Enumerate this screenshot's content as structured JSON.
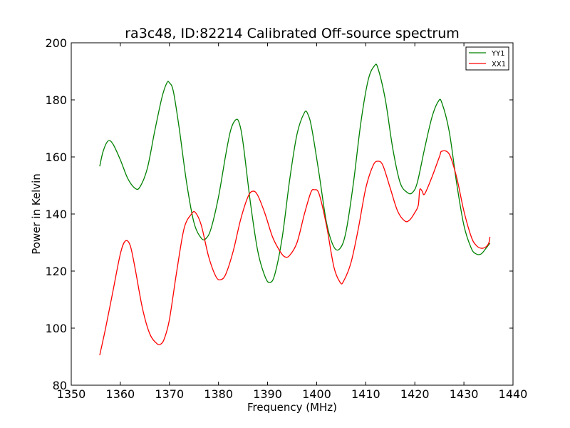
{
  "chart_data": {
    "type": "line",
    "title": "ra3c48, ID:82214 Calibrated Off-source spectrum",
    "xlabel": "Frequency (MHz)",
    "ylabel": "Power in Kelvin",
    "xlim": [
      1350,
      1440
    ],
    "ylim": [
      80,
      200
    ],
    "xticks": [
      1350,
      1360,
      1370,
      1380,
      1390,
      1400,
      1410,
      1420,
      1430,
      1440
    ],
    "yticks": [
      80,
      100,
      120,
      140,
      160,
      180,
      200
    ],
    "grid": false,
    "legend_position": "top-right",
    "series": [
      {
        "name": "YY1",
        "color": "#008000",
        "x": [
          1355.8,
          1356.5,
          1357.5,
          1358.5,
          1360,
          1361.5,
          1363,
          1364,
          1365.5,
          1367,
          1368.5,
          1369.5,
          1370,
          1370.8,
          1372,
          1373.5,
          1375,
          1376.5,
          1377.5,
          1378.5,
          1380,
          1381.5,
          1382.5,
          1383.5,
          1384.2,
          1385,
          1386.5,
          1388,
          1389.5,
          1390.5,
          1391.5,
          1393,
          1394.5,
          1396,
          1397.5,
          1398.2,
          1399,
          1400.5,
          1402,
          1403.5,
          1404.8,
          1406,
          1407.5,
          1409,
          1410.5,
          1411.8,
          1412.5,
          1414,
          1415.5,
          1417,
          1418.5,
          1419.5,
          1420.5,
          1422,
          1423.5,
          1424.8,
          1425.5,
          1427,
          1428.5,
          1430,
          1431.5,
          1432.5,
          1433.5,
          1434.5,
          1435.3
        ],
        "values": [
          156.7,
          162,
          165.6,
          164.5,
          159,
          152.5,
          149,
          149.5,
          156,
          169,
          181,
          186,
          186,
          183,
          170,
          151,
          137,
          131.5,
          131.5,
          135,
          146,
          161,
          169.5,
          173,
          172,
          165,
          144,
          127,
          118,
          116,
          119,
          132,
          152,
          168,
          175.5,
          175,
          170,
          154,
          137,
          128.5,
          128,
          134,
          151,
          172,
          187,
          192,
          191,
          180,
          163,
          151,
          147.5,
          147.5,
          151,
          163,
          174,
          179.5,
          179,
          169,
          151,
          136,
          128,
          126,
          126,
          128,
          129.8
        ]
      },
      {
        "name": "XX1",
        "color": "#ff0000",
        "x": [
          1355.8,
          1357,
          1358.5,
          1360,
          1361,
          1362,
          1363,
          1364.5,
          1366,
          1367.5,
          1368.3,
          1369,
          1370,
          1371.5,
          1373,
          1374.5,
          1375.3,
          1376.5,
          1378,
          1379.5,
          1380.5,
          1381.5,
          1383,
          1384.5,
          1386,
          1387,
          1388,
          1389.5,
          1391,
          1392.5,
          1393.5,
          1394.5,
          1396,
          1397.5,
          1398.8,
          1399.5,
          1400.5,
          1402,
          1403.5,
          1404.8,
          1405.5,
          1407,
          1408.5,
          1410,
          1411.5,
          1412.5,
          1413.5,
          1415,
          1416.5,
          1418,
          1419,
          1420,
          1420.7,
          1421,
          1421.5,
          1422,
          1423.5,
          1425,
          1425.5,
          1427,
          1428.5,
          1430,
          1431.5,
          1432.5,
          1433.5,
          1434.5,
          1435.1,
          1435.3
        ],
        "values": [
          90.5,
          100,
          113,
          126,
          130.5,
          129,
          121,
          107,
          98,
          94.5,
          94.5,
          96.5,
          103,
          120,
          135,
          140,
          140.5,
          136,
          125,
          118,
          117,
          119,
          127,
          138,
          146,
          148,
          146.5,
          140,
          132,
          127,
          125,
          125.5,
          130,
          140,
          147.5,
          148.5,
          147,
          136,
          121.5,
          116,
          116.5,
          123,
          135,
          149,
          157,
          158.5,
          157,
          149,
          141,
          137.5,
          138,
          140.5,
          143,
          148.5,
          148,
          147,
          153,
          160,
          162,
          161,
          153,
          141,
          132,
          129,
          128,
          128.5,
          130,
          132
        ]
      }
    ]
  }
}
